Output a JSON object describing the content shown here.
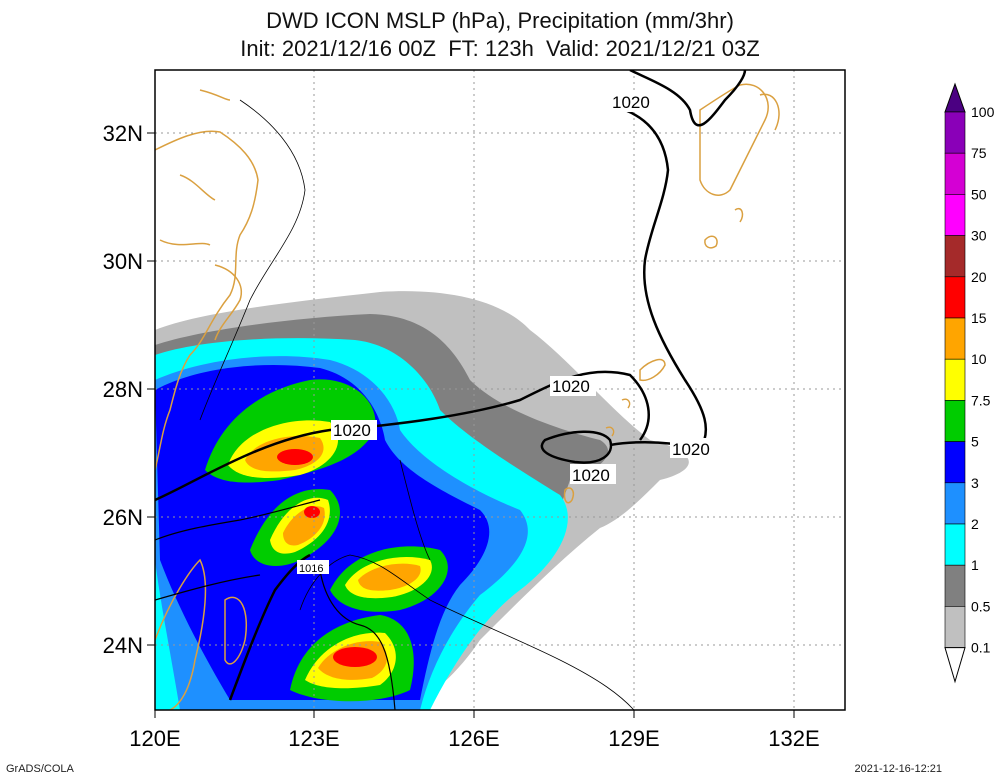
{
  "title": {
    "line1": "DWD ICON MSLP (hPa), Precipitation (mm/3hr)",
    "line2": "Init: 2021/12/16 00Z  FT: 123h  Valid: 2021/12/21 03Z"
  },
  "axes": {
    "lat_labels": [
      "32N",
      "30N",
      "28N",
      "26N",
      "24N"
    ],
    "lon_labels": [
      "120E",
      "123E",
      "126E",
      "129E",
      "132E"
    ]
  },
  "isobar_labels": [
    "1020",
    "1020",
    "1020",
    "1020",
    "1020",
    "1016"
  ],
  "colorbar": {
    "labels": [
      "100",
      "75",
      "50",
      "30",
      "20",
      "15",
      "10",
      "7.5",
      "5",
      "3",
      "2",
      "1",
      "0.5",
      "0.1"
    ],
    "colors": [
      "#4b0082",
      "#8a00b8",
      "#d400d4",
      "#ff00ff",
      "#a52a2a",
      "#ff0000",
      "#ffa500",
      "#ffff00",
      "#00cc00",
      "#0000ff",
      "#1e90ff",
      "#00ffff",
      "#808080",
      "#c0c0c0"
    ]
  },
  "footer": {
    "left": "GrADS/COLA",
    "right": "2021-12-16-12:21"
  }
}
